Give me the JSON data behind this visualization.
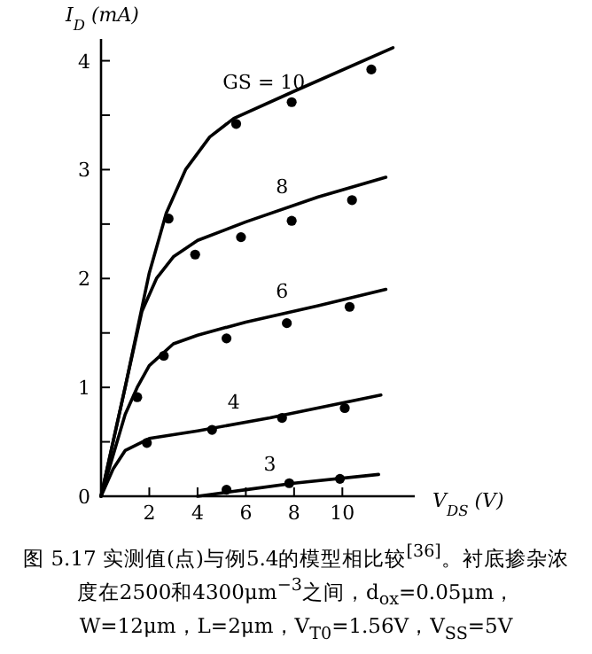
{
  "chart_data": {
    "type": "line",
    "xlabel": "V$_{DS}$ (V)",
    "ylabel": "I$_{D}$ (mA)",
    "xlim": [
      0,
      13
    ],
    "xticks": [
      2,
      4,
      6,
      8,
      10
    ],
    "ylim": [
      0,
      4.2
    ],
    "yticks": [
      0,
      {
        "value": 0.5,
        "label": null
      },
      1,
      {
        "value": 1.5,
        "label": null
      },
      2,
      {
        "value": 2.5,
        "label": null
      },
      3,
      {
        "value": 3.5,
        "label": null
      },
      4
    ],
    "grid": false,
    "legend": false,
    "series": [
      {
        "name": "GS = 10",
        "color": "#000000",
        "x": [
          0,
          1,
          2,
          2.7,
          3.5,
          4.5,
          5.5,
          8,
          12.1
        ],
        "values": [
          0,
          1.0,
          2.05,
          2.6,
          3.0,
          3.3,
          3.47,
          3.72,
          4.12
        ]
      },
      {
        "name": "8",
        "color": "#000000",
        "x": [
          0,
          1,
          1.7,
          2.3,
          3,
          4,
          6,
          9,
          11.8
        ],
        "values": [
          0,
          1.0,
          1.7,
          2.0,
          2.2,
          2.35,
          2.52,
          2.75,
          2.93
        ]
      },
      {
        "name": "6",
        "color": "#000000",
        "x": [
          0,
          1,
          1.5,
          2,
          3,
          4,
          6,
          9,
          11.8
        ],
        "values": [
          0,
          0.75,
          1.0,
          1.2,
          1.4,
          1.48,
          1.6,
          1.75,
          1.9
        ]
      },
      {
        "name": "4",
        "color": "#000000",
        "x": [
          0,
          0.5,
          1,
          2,
          4,
          7,
          11.6
        ],
        "values": [
          0,
          0.25,
          0.42,
          0.53,
          0.6,
          0.72,
          0.93
        ]
      },
      {
        "name": "3",
        "color": "#000000",
        "x": [
          4,
          6,
          8,
          11.5
        ],
        "values": [
          0,
          0.06,
          0.12,
          0.2
        ]
      },
      {
        "type": "scatter",
        "marker": "circle",
        "color": "#000000",
        "x": [
          2.8,
          5.6,
          7.9,
          11.2
        ],
        "values": [
          2.55,
          3.42,
          3.62,
          3.92
        ]
      },
      {
        "type": "scatter",
        "marker": "circle",
        "color": "#000000",
        "x": [
          3.9,
          5.8,
          7.9,
          10.4
        ],
        "values": [
          2.22,
          2.38,
          2.53,
          2.72
        ]
      },
      {
        "type": "scatter",
        "marker": "circle",
        "color": "#000000",
        "x": [
          1.5,
          2.6,
          5.2,
          7.7,
          10.3
        ],
        "values": [
          0.91,
          1.29,
          1.45,
          1.59,
          1.74
        ]
      },
      {
        "type": "scatter",
        "marker": "circle",
        "color": "#000000",
        "x": [
          1.9,
          4.6,
          7.5,
          10.1
        ],
        "values": [
          0.49,
          0.61,
          0.72,
          0.81
        ]
      },
      {
        "type": "scatter",
        "marker": "circle",
        "color": "#000000",
        "x": [
          5.2,
          7.8,
          9.9
        ],
        "values": [
          0.06,
          0.12,
          0.16
        ]
      }
    ],
    "annotations": [
      "图 5.17 实测值(点)与例5.4的模型相比较$^{[36]}$。衬底掺杂浓度在2500和4300μm$^{−3}$之间，d$_{ox}$=0.05μm，W=12μm，L=2μm，V$_{T0}$=1.56V，V$_{SS}$=5V"
    ]
  }
}
